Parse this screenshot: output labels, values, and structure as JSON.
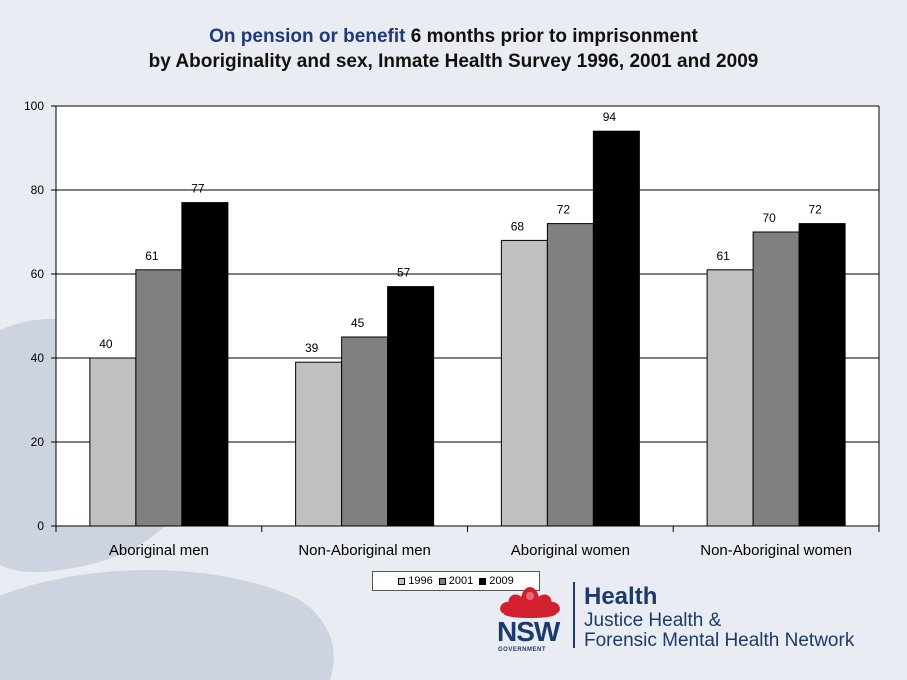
{
  "title": {
    "highlight": "On pension or benefit",
    "line1_rest": " 6 months prior to imprisonment",
    "line2": "by Aboriginality and sex, Inmate Health Survey 1996, 2001 and 2009"
  },
  "colors": {
    "background": "#e9ecf2",
    "title_highlight": "#1f3a78",
    "brand_navy": "#1c3a6b",
    "waratah_red": "#d3202f"
  },
  "chart_data": {
    "type": "bar",
    "categories": [
      "Aboriginal men",
      "Non-Aboriginal men",
      "Aboriginal women",
      "Non-Aboriginal women"
    ],
    "series": [
      {
        "name": "1996",
        "color": "#c0c0c0",
        "values": [
          40,
          39,
          68,
          61
        ]
      },
      {
        "name": "2001",
        "color": "#808080",
        "values": [
          61,
          45,
          72,
          70
        ]
      },
      {
        "name": "2009",
        "color": "#000000",
        "values": [
          77,
          57,
          94,
          72
        ]
      }
    ],
    "ylim": [
      0,
      100
    ],
    "yticks": [
      0,
      20,
      40,
      60,
      80,
      100
    ],
    "grid": true,
    "legend": "bottom",
    "data_labels": true
  },
  "logo": {
    "nsw": "NSW",
    "government": "GOVERNMENT",
    "health": "Health",
    "network_line1": "Justice Health &",
    "network_line2": "Forensic Mental Health Network"
  }
}
